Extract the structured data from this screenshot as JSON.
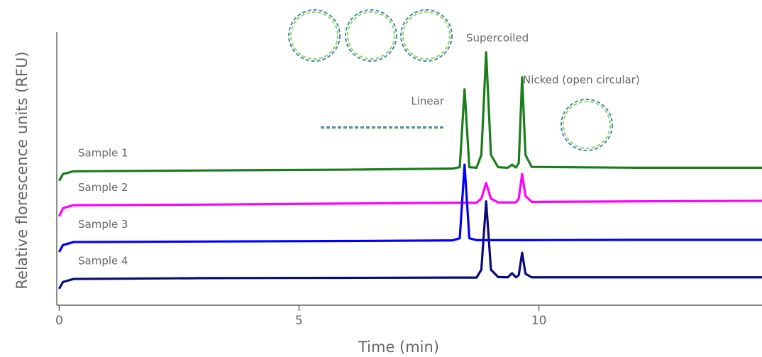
{
  "chart_data": {
    "type": "line",
    "x_label": "Time (min)",
    "y_label": "Relative florescence units (RFU)",
    "annotations": [
      "Supercoiled",
      "Linear",
      "Nicked (open circular)"
    ],
    "x": [
      0,
      0.08,
      0.3,
      3,
      6,
      8.2,
      8.35,
      8.45,
      8.55,
      8.7,
      8.8,
      8.9,
      9.0,
      9.15,
      9.35,
      9.44,
      9.52,
      9.58,
      9.65,
      9.72,
      9.85,
      12,
      14.65
    ],
    "xlim": [
      -0.05,
      14.65
    ],
    "xticks": [
      0,
      5,
      10
    ],
    "ylim": [
      0,
      100
    ],
    "series": [
      {
        "name": "Sample 1",
        "color": "#1a7d1a",
        "values": [
          45.5,
          48,
          49,
          49.3,
          49.6,
          50,
          50.5,
          79,
          50.5,
          50.3,
          55,
          92.5,
          55,
          50.5,
          50.3,
          51.4,
          50.4,
          52,
          83.4,
          55,
          50.6,
          50.3,
          50.3
        ]
      },
      {
        "name": "Sample 2",
        "color": "#ff00ff",
        "values": [
          32.5,
          35.5,
          36.6,
          36.8,
          37.2,
          37.5,
          37.5,
          37.5,
          37.5,
          37.5,
          39,
          44.7,
          39,
          37.6,
          37.6,
          37.6,
          37.6,
          39,
          48,
          40,
          37.8,
          38,
          38.2
        ]
      },
      {
        "name": "Sample 3",
        "color": "#0000ff",
        "values": [
          19.5,
          22,
          23.1,
          23.3,
          23.5,
          23.7,
          24.5,
          51.4,
          24.5,
          23.8,
          23.8,
          23.8,
          23.8,
          23.8,
          23.8,
          23.8,
          23.8,
          23.8,
          23.8,
          23.8,
          23.8,
          23.9,
          23.9
        ]
      },
      {
        "name": "Sample 4",
        "color": "#0a0a7a",
        "values": [
          6,
          8.5,
          9.6,
          9.9,
          10,
          10.1,
          10.1,
          10.1,
          10.1,
          10.1,
          13,
          38,
          13,
          10.3,
          10.2,
          11.7,
          10.2,
          11,
          19.2,
          11.5,
          10.2,
          10.2,
          10.2
        ]
      }
    ]
  }
}
